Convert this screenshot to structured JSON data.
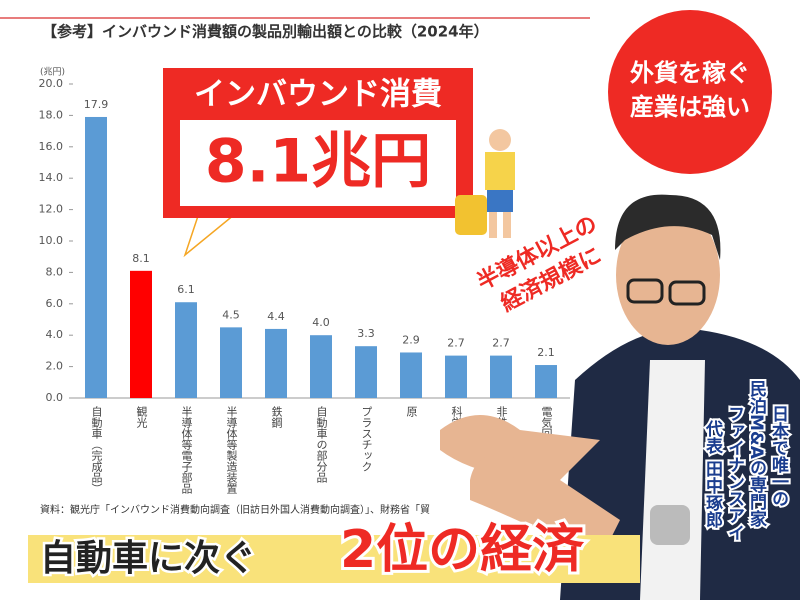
{
  "chart_data": {
    "type": "bar",
    "title": "【参考】インバウンド消費額の製品別輸出額との比較（2024年）",
    "unit": "(兆円)",
    "categories": [
      "自動車（完成品）",
      "観光",
      "半導体等電子部品",
      "半導体等製造装置",
      "鉄鋼",
      "自動車の部分品",
      "プラスチック",
      "原",
      "科学光",
      "非鉄金属",
      "電気回路等の機"
    ],
    "values": [
      17.9,
      8.1,
      6.1,
      4.5,
      4.4,
      4.0,
      3.3,
      2.9,
      2.7,
      2.7,
      2.1
    ],
    "value_labels": [
      "17.9",
      "8.1",
      "6.1",
      "4.5",
      "4.4",
      "4.0",
      "3.3",
      "2.9",
      "2.7",
      "2.7",
      "2.1"
    ],
    "color": "#5b9bd5",
    "highlight_color": "#ff0000",
    "highlight_index": 1,
    "ylim": [
      0,
      20
    ],
    "yticks": [
      {
        "value": 0,
        "label": "0.0"
      },
      {
        "value": 2,
        "label": "2.0"
      },
      {
        "value": 4,
        "label": "4.0"
      },
      {
        "value": 6,
        "label": "6.0"
      },
      {
        "value": 8,
        "label": "8.0"
      },
      {
        "value": 10,
        "label": "10.0"
      },
      {
        "value": 12,
        "label": "12.0"
      },
      {
        "value": 14,
        "label": "14.0"
      },
      {
        "value": 16,
        "label": "16.0"
      },
      {
        "value": 18,
        "label": "18.0"
      },
      {
        "value": 20,
        "label": "20.0"
      }
    ],
    "source": "資料：観光庁「インバウンド消費動向調査（旧訪日外国人消費動向調査）」、財務省「貿"
  },
  "callout": {
    "line1": "インバウンド消費",
    "line2": "8.1兆円"
  },
  "badge": {
    "line1": "外貨を稼ぐ",
    "line2": "産業は強い"
  },
  "tilted": {
    "line1": "半導体以上の",
    "line2": "経済規模に"
  },
  "profile": [
    "日本で唯一の",
    "民泊M&Aの専門家",
    "ファイナンスアイ",
    "代表 田中琢郎"
  ],
  "banner": {
    "part1": "自動車に次ぐ",
    "part2": "2位の経済"
  }
}
